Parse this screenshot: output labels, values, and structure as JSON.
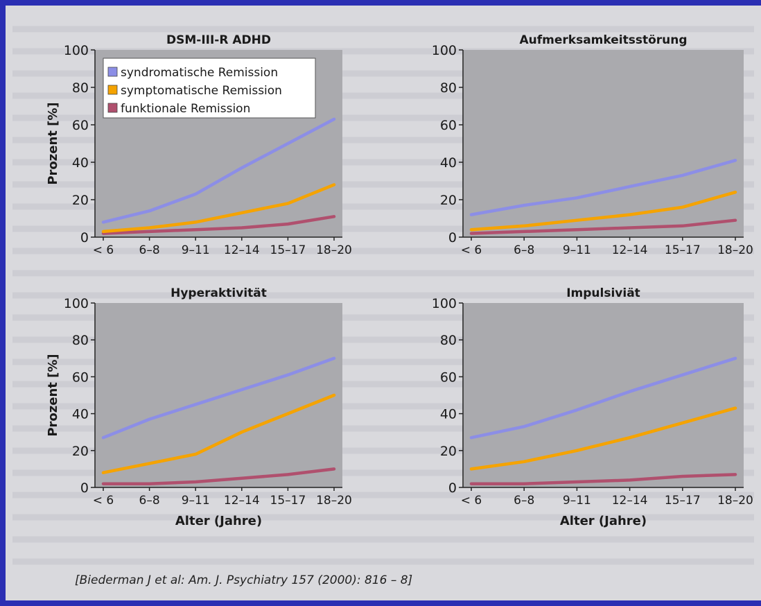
{
  "citation": "[Biederman J et al: Am. J. Psychiatry 157 (2000): 816 – 8]",
  "colors": {
    "syndromatische": "#8c8ee6",
    "symptomatische": "#f5a300",
    "funktionale": "#b0506e",
    "plot_bg": "#aaaaae",
    "panel_bg": "#d9d9dd",
    "slide_bg": "#2b2fb3"
  },
  "chart_data": [
    {
      "type": "line",
      "title": "DSM-III-R ADHD",
      "xlabel": "",
      "ylabel": "Prozent [%]",
      "categories": [
        "< 6",
        "6–8",
        "9–11",
        "12–14",
        "15–17",
        "18–20"
      ],
      "ylim": [
        0,
        100
      ],
      "yticks": [
        "0",
        "20",
        "40",
        "60",
        "80",
        "100"
      ],
      "legend": "top-left",
      "series": [
        {
          "name": "syndromatische Remission",
          "values": [
            8,
            14,
            23,
            37,
            50,
            63
          ]
        },
        {
          "name": "symptomatische Remission",
          "values": [
            3,
            5,
            8,
            13,
            18,
            28
          ]
        },
        {
          "name": "funktionale Remission",
          "values": [
            2,
            3,
            4,
            5,
            7,
            11
          ]
        }
      ]
    },
    {
      "type": "line",
      "title": "Aufmerksamkeitsstörung",
      "xlabel": "",
      "ylabel": "",
      "categories": [
        "< 6",
        "6–8",
        "9–11",
        "12–14",
        "15–17",
        "18–20"
      ],
      "ylim": [
        0,
        100
      ],
      "yticks": [
        "0",
        "20",
        "40",
        "60",
        "80",
        "100"
      ],
      "series": [
        {
          "values": [
            12,
            17,
            21,
            27,
            33,
            41
          ]
        },
        {
          "values": [
            4,
            6,
            9,
            12,
            16,
            24
          ]
        },
        {
          "values": [
            2,
            3,
            4,
            5,
            6,
            9
          ]
        }
      ]
    },
    {
      "type": "line",
      "title": "Hyperaktivität",
      "xlabel": "Alter (Jahre)",
      "ylabel": "Prozent [%]",
      "categories": [
        "< 6",
        "6–8",
        "9–11",
        "12–14",
        "15–17",
        "18–20"
      ],
      "ylim": [
        0,
        100
      ],
      "yticks": [
        "0",
        "20",
        "40",
        "60",
        "80",
        "100"
      ],
      "series": [
        {
          "values": [
            27,
            37,
            45,
            53,
            61,
            70
          ]
        },
        {
          "values": [
            8,
            13,
            18,
            30,
            40,
            50
          ]
        },
        {
          "values": [
            2,
            2,
            3,
            5,
            7,
            10
          ]
        }
      ]
    },
    {
      "type": "line",
      "title": "Impulsiviät",
      "xlabel": "Alter (Jahre)",
      "ylabel": "",
      "categories": [
        "< 6",
        "6–8",
        "9–11",
        "12–14",
        "15–17",
        "18–20"
      ],
      "ylim": [
        0,
        100
      ],
      "yticks": [
        "0",
        "20",
        "40",
        "60",
        "80",
        "100"
      ],
      "series": [
        {
          "values": [
            27,
            33,
            42,
            52,
            61,
            70
          ]
        },
        {
          "values": [
            10,
            14,
            20,
            27,
            35,
            43
          ]
        },
        {
          "values": [
            2,
            2,
            3,
            4,
            6,
            7
          ]
        }
      ]
    }
  ]
}
